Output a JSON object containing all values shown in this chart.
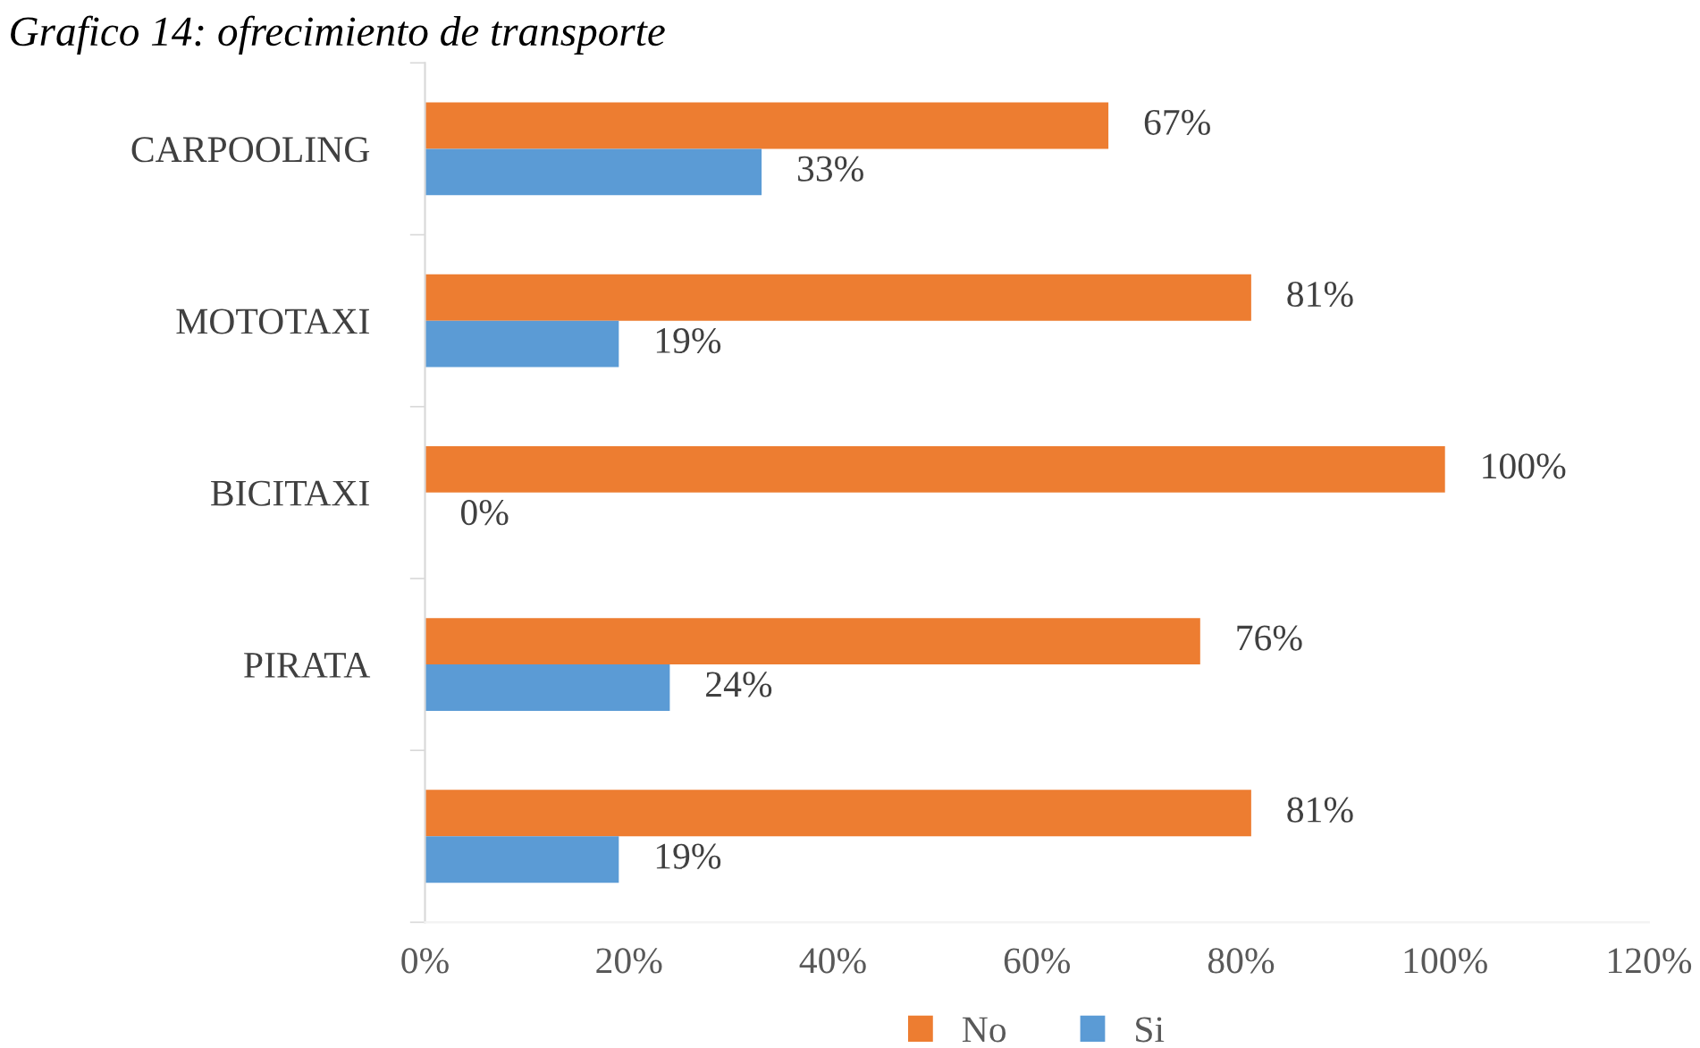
{
  "chart_data": {
    "type": "bar",
    "orientation": "horizontal",
    "title": "Grafico 14: ofrecimiento de transporte",
    "categories": [
      "CARPOOLING",
      "MOTOTAXI",
      "BICITAXI",
      "PIRATA",
      null
    ],
    "series": [
      {
        "name": "No",
        "color": "#ed7d31",
        "values": [
          67,
          81,
          100,
          76,
          81
        ],
        "value_labels": [
          "67%",
          "81%",
          "100%",
          "76%",
          "81%"
        ]
      },
      {
        "name": "Si",
        "color": "#5b9bd5",
        "values": [
          33,
          19,
          0,
          24,
          19
        ],
        "value_labels": [
          "33%",
          "19%",
          "0%",
          "24%",
          "19%"
        ]
      }
    ],
    "xlim": [
      0,
      120
    ],
    "xticks": [
      {
        "value": 0,
        "label": "0%"
      },
      {
        "value": 20,
        "label": "20%"
      },
      {
        "value": 40,
        "label": "40%"
      },
      {
        "value": 60,
        "label": "60%"
      },
      {
        "value": 80,
        "label": "80%"
      },
      {
        "value": 100,
        "label": "100%"
      },
      {
        "value": 120,
        "label": "120%"
      }
    ],
    "grid": false,
    "legend": "bottom"
  }
}
